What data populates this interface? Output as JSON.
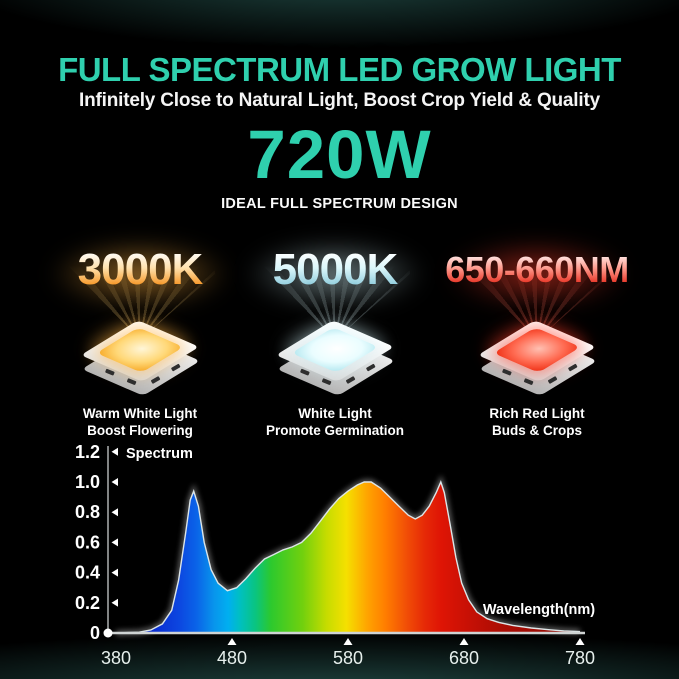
{
  "poster": {
    "background_color": "#000000",
    "ambient_glow_color": "#34766e"
  },
  "header": {
    "title": "FULL SPECTRUM LED GROW LIGHT",
    "subtitle": "Infinitely Close to Natural Light, Boost Crop Yield & Quality",
    "wattage": "720W",
    "tagline": "IDEAL FULL SPECTRUM DESIGN",
    "accent_color": "#2fd0ae"
  },
  "features": [
    {
      "value": "3000K",
      "line1": "Warm White Light",
      "line2": "Boost Flowering",
      "colors": {
        "text_mid": "#ffe2ae",
        "text_bottom": "#f58a10",
        "glow_soft": "rgba(255,176,64,0.55)",
        "ray": "rgba(255,210,120,0.40)",
        "led": [
          "#fff6d8",
          "#ffd878",
          "#f7aa28"
        ]
      }
    },
    {
      "value": "5000K",
      "line1": "White Light",
      "line2": "Promote Germination",
      "colors": {
        "text_mid": "#dcf7fb",
        "text_bottom": "#84c6d8",
        "glow_soft": "rgba(205,238,244,0.50)",
        "ray": "rgba(220,246,250,0.40)",
        "led": [
          "#ffffff",
          "#eafdff",
          "#b5e8f0"
        ]
      }
    },
    {
      "value": "650-660NM",
      "line1": "Rich Red Light",
      "line2": "Buds & Crops",
      "colors": {
        "text_mid": "#ff9d90",
        "text_bottom": "#e01505",
        "glow_soft": "rgba(255,60,40,0.55)",
        "ray": "rgba(255,110,90,0.40)",
        "led": [
          "#ffc0b2",
          "#ff6b52",
          "#ef3015"
        ]
      }
    }
  ],
  "chart_data": {
    "type": "area",
    "title": "Spectrum",
    "xlabel": "Wavelength(nm)",
    "ylabel": "",
    "xlim": [
      380,
      780
    ],
    "ylim": [
      0,
      1.2
    ],
    "grid": false,
    "legend_position": "top-left",
    "x_ticks": [
      380,
      480,
      580,
      680,
      780
    ],
    "x_tick_labels": [
      "380",
      "480",
      "580",
      "680",
      "780"
    ],
    "y_ticks": [
      0,
      0.2,
      0.4,
      0.6,
      0.8,
      1.0,
      1.2
    ],
    "y_tick_labels": [
      "0",
      "0.2",
      "0.4",
      "0.6",
      "0.8",
      "1.0",
      "1.2"
    ],
    "series": [
      {
        "name": "Spectrum",
        "x": [
          380,
          400,
          410,
          420,
          428,
          434,
          440,
          444,
          447,
          451,
          456,
          462,
          468,
          476,
          484,
          492,
          500,
          508,
          516,
          524,
          532,
          540,
          548,
          556,
          564,
          572,
          580,
          588,
          594,
          600,
          608,
          616,
          624,
          632,
          638,
          644,
          650,
          656,
          660,
          663,
          668,
          673,
          678,
          684,
          691,
          700,
          710,
          722,
          738,
          754,
          766,
          780
        ],
        "y": [
          0,
          0.005,
          0.02,
          0.06,
          0.15,
          0.35,
          0.66,
          0.88,
          0.94,
          0.84,
          0.6,
          0.42,
          0.33,
          0.28,
          0.3,
          0.36,
          0.43,
          0.49,
          0.52,
          0.55,
          0.57,
          0.6,
          0.66,
          0.74,
          0.82,
          0.89,
          0.94,
          0.98,
          1.0,
          1.0,
          0.96,
          0.9,
          0.84,
          0.78,
          0.755,
          0.78,
          0.84,
          0.93,
          1.0,
          0.93,
          0.72,
          0.5,
          0.33,
          0.22,
          0.14,
          0.095,
          0.07,
          0.05,
          0.033,
          0.021,
          0.014,
          0.009
        ]
      }
    ],
    "fill_gradient_by_wavelength": [
      {
        "wl": 380,
        "color": "#051878"
      },
      {
        "wl": 420,
        "color": "#0a2ed2"
      },
      {
        "wl": 440,
        "color": "#0c46e0"
      },
      {
        "wl": 455,
        "color": "#0a64e8"
      },
      {
        "wl": 470,
        "color": "#0895ec"
      },
      {
        "wl": 482,
        "color": "#00aff0"
      },
      {
        "wl": 492,
        "color": "#00c0c0"
      },
      {
        "wl": 505,
        "color": "#0ac47f"
      },
      {
        "wl": 518,
        "color": "#2cc92e"
      },
      {
        "wl": 545,
        "color": "#71d00e"
      },
      {
        "wl": 565,
        "color": "#c6dc00"
      },
      {
        "wl": 582,
        "color": "#f5e000"
      },
      {
        "wl": 600,
        "color": "#ffa300"
      },
      {
        "wl": 615,
        "color": "#ff7d00"
      },
      {
        "wl": 632,
        "color": "#f25106"
      },
      {
        "wl": 648,
        "color": "#e62a06"
      },
      {
        "wl": 662,
        "color": "#df1505"
      },
      {
        "wl": 685,
        "color": "#c81005"
      },
      {
        "wl": 715,
        "color": "#aa0d04"
      },
      {
        "wl": 780,
        "color": "#8c0a03"
      }
    ]
  }
}
